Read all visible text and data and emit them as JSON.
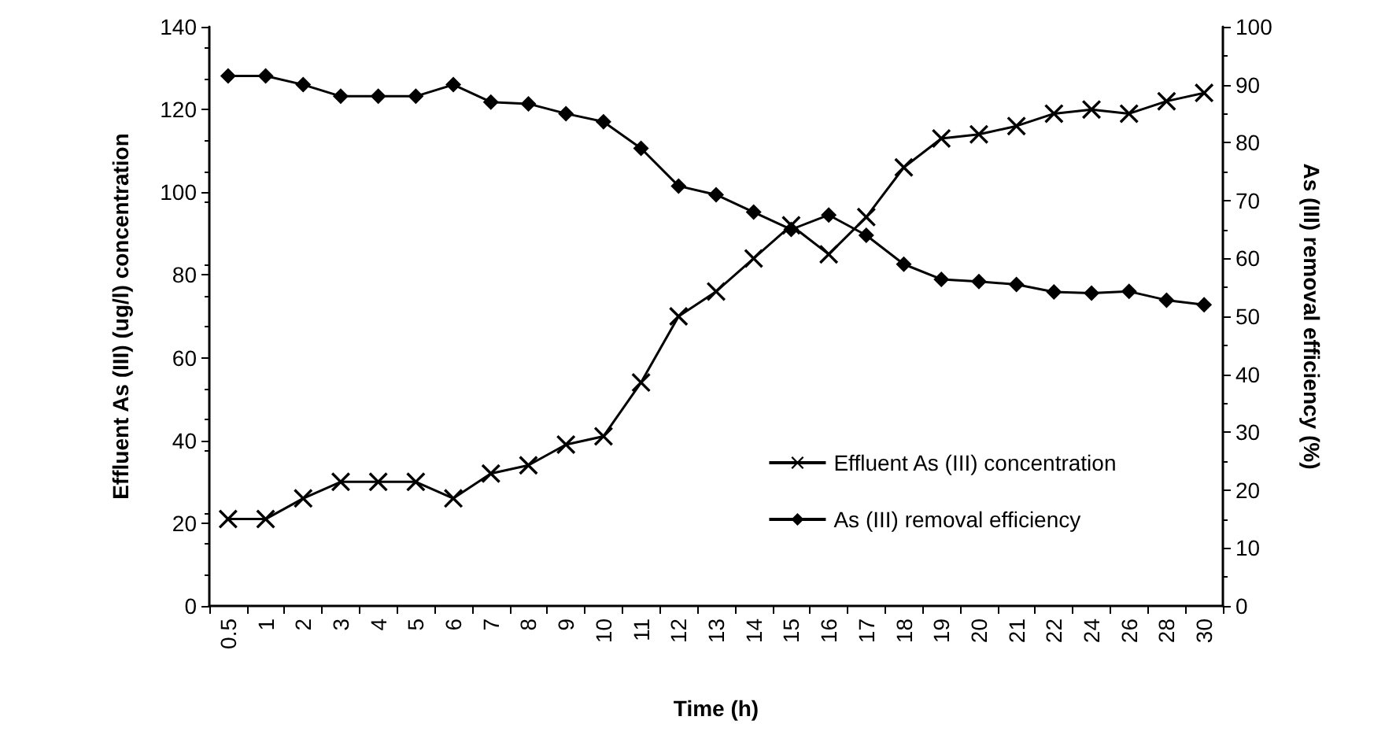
{
  "chart_data": {
    "type": "line",
    "categories": [
      "0.5",
      "1",
      "2",
      "3",
      "4",
      "5",
      "6",
      "7",
      "8",
      "9",
      "10",
      "11",
      "12",
      "13",
      "14",
      "15",
      "16",
      "17",
      "18",
      "19",
      "20",
      "21",
      "22",
      "24",
      "26",
      "28",
      "30"
    ],
    "xlabel": "Time (h)",
    "ylabel": "Effluent As (III) (ug/l) concentration",
    "y2label": "As (III) removal efficiency (%)",
    "ylim": [
      0,
      140
    ],
    "yticks": [
      0,
      20,
      40,
      60,
      80,
      100,
      120,
      140
    ],
    "y2lim": [
      0,
      100
    ],
    "y2ticks": [
      0,
      10,
      20,
      30,
      40,
      50,
      60,
      70,
      80,
      90,
      100
    ],
    "legend": "bottom right",
    "grid": false,
    "series": [
      {
        "name": "Effluent As (III) concentration",
        "color": "#000000",
        "marker": "cross",
        "values": [
          21,
          21,
          26,
          30,
          30,
          30,
          26,
          32,
          34,
          39,
          41,
          54,
          70,
          76,
          84,
          92,
          85,
          94,
          106,
          113,
          114,
          116,
          119,
          120,
          119,
          122,
          124
        ]
      },
      {
        "name": "As (III) removal efficiency",
        "color": "#000000",
        "marker": "diamond",
        "axis": "y2",
        "values": [
          91.5,
          91.5,
          90,
          88,
          88,
          88,
          90,
          87,
          86.7,
          85,
          83.6,
          79,
          72.5,
          71,
          68,
          65,
          67.5,
          64,
          59,
          56.4,
          56,
          55.5,
          54.2,
          54,
          54.3,
          52.8,
          52
        ]
      }
    ]
  }
}
